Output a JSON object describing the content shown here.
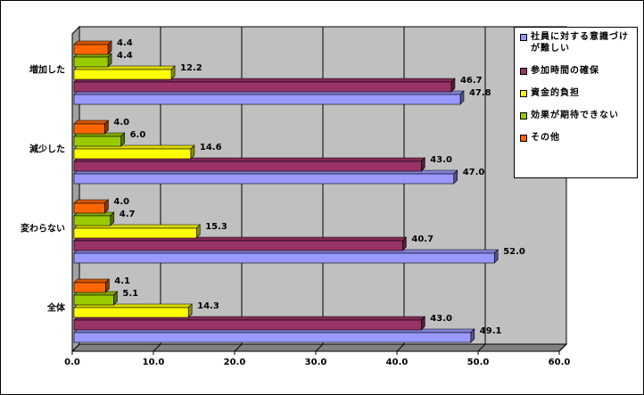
{
  "chart_data": {
    "type": "bar",
    "orientation": "horizontal",
    "categories": [
      "増加した",
      "減少した",
      "変わらない",
      "全体"
    ],
    "series": [
      {
        "name": "社員に対する意識づけが難しい",
        "color": "#9999ff",
        "values": [
          47.8,
          47.0,
          52.0,
          49.1
        ],
        "value_labels": [
          "47.8",
          "47.0",
          "52.0",
          "49.1"
        ]
      },
      {
        "name": "参加時間の確保",
        "color": "#993366",
        "values": [
          46.7,
          43.0,
          40.7,
          43.0
        ],
        "value_labels": [
          "46.7",
          "43.0",
          "40.7",
          "43.0"
        ]
      },
      {
        "name": "資金的負担",
        "color": "#ffff00",
        "values": [
          12.2,
          14.6,
          15.3,
          14.3
        ],
        "value_labels": [
          "12.2",
          "14.6",
          "15.3",
          "14.3"
        ]
      },
      {
        "name": "効果が期待できない",
        "color": "#99cc00",
        "values": [
          4.4,
          6.0,
          4.7,
          5.1
        ],
        "value_labels": [
          "4.4",
          "6.0",
          "4.7",
          "5.1"
        ]
      },
      {
        "name": "その他",
        "color": "#ff6600",
        "values": [
          4.4,
          4.0,
          4.0,
          4.1
        ],
        "value_labels": [
          "4.4",
          "4.0",
          "4.0",
          "4.1"
        ]
      }
    ],
    "xlim": [
      0,
      60
    ],
    "xticks": [
      {
        "value": 0,
        "label": "0.0"
      },
      {
        "value": 10,
        "label": "10.0"
      },
      {
        "value": 20,
        "label": "20.0"
      },
      {
        "value": 30,
        "label": "30.0"
      },
      {
        "value": 40,
        "label": "40.0"
      },
      {
        "value": 50,
        "label": "50.0"
      },
      {
        "value": 60,
        "label": "60.0"
      }
    ],
    "grid": true
  }
}
